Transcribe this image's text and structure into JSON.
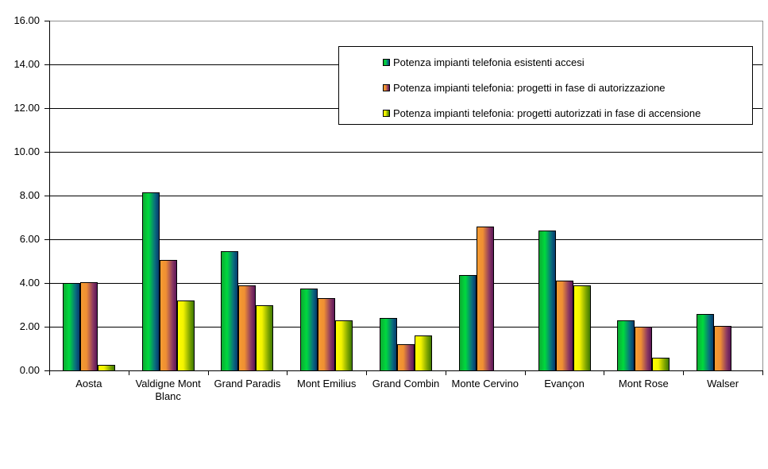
{
  "chart_meta": {
    "background_color": "#FFFFFF",
    "grid_color": "#000000",
    "plot_border_color": "#909090",
    "axis_color": "#000000",
    "legend_border_color": "#000000"
  },
  "chart_data": {
    "type": "bar",
    "title": "",
    "xlabel": "",
    "ylabel": "",
    "ylim": [
      0,
      16
    ],
    "ytick_step": 2,
    "ytick_labels": [
      "0.00",
      "2.00",
      "4.00",
      "6.00",
      "8.00",
      "10.00",
      "12.00",
      "14.00",
      "16.00"
    ],
    "grid": true,
    "legend_position": "top-right-inside",
    "categories": [
      "Aosta",
      "Valdigne Mont Blanc",
      "Grand Paradis",
      "Mont Emilius",
      "Grand Combin",
      "Monte Cervino",
      "Evançon",
      "Mont Rose",
      "Walser"
    ],
    "series": [
      {
        "name": "Potenza impianti telefonia esistenti accesi",
        "values": [
          4.0,
          8.15,
          5.45,
          3.75,
          2.4,
          4.35,
          6.4,
          2.3,
          2.6
        ],
        "gradient": [
          "#0CAB31",
          "#00D93E",
          "#0A6E7E",
          "#063A6E"
        ]
      },
      {
        "name": "Potenza impianti telefonia: progetti in fase di autorizzazione",
        "values": [
          4.05,
          5.05,
          3.9,
          3.3,
          1.2,
          6.6,
          4.1,
          2.0,
          2.05
        ],
        "gradient": [
          "#F59B31",
          "#EF8F33",
          "#8D3A62",
          "#5C1758"
        ]
      },
      {
        "name": "Potenza impianti telefonia: progetti autorizzati in fase di accensione",
        "values": [
          0.25,
          3.2,
          3.0,
          2.3,
          1.6,
          0,
          3.9,
          0.6,
          0
        ],
        "gradient": [
          "#FFFF00",
          "#F2F200",
          "#7DA400",
          "#3F7A00"
        ]
      }
    ]
  }
}
